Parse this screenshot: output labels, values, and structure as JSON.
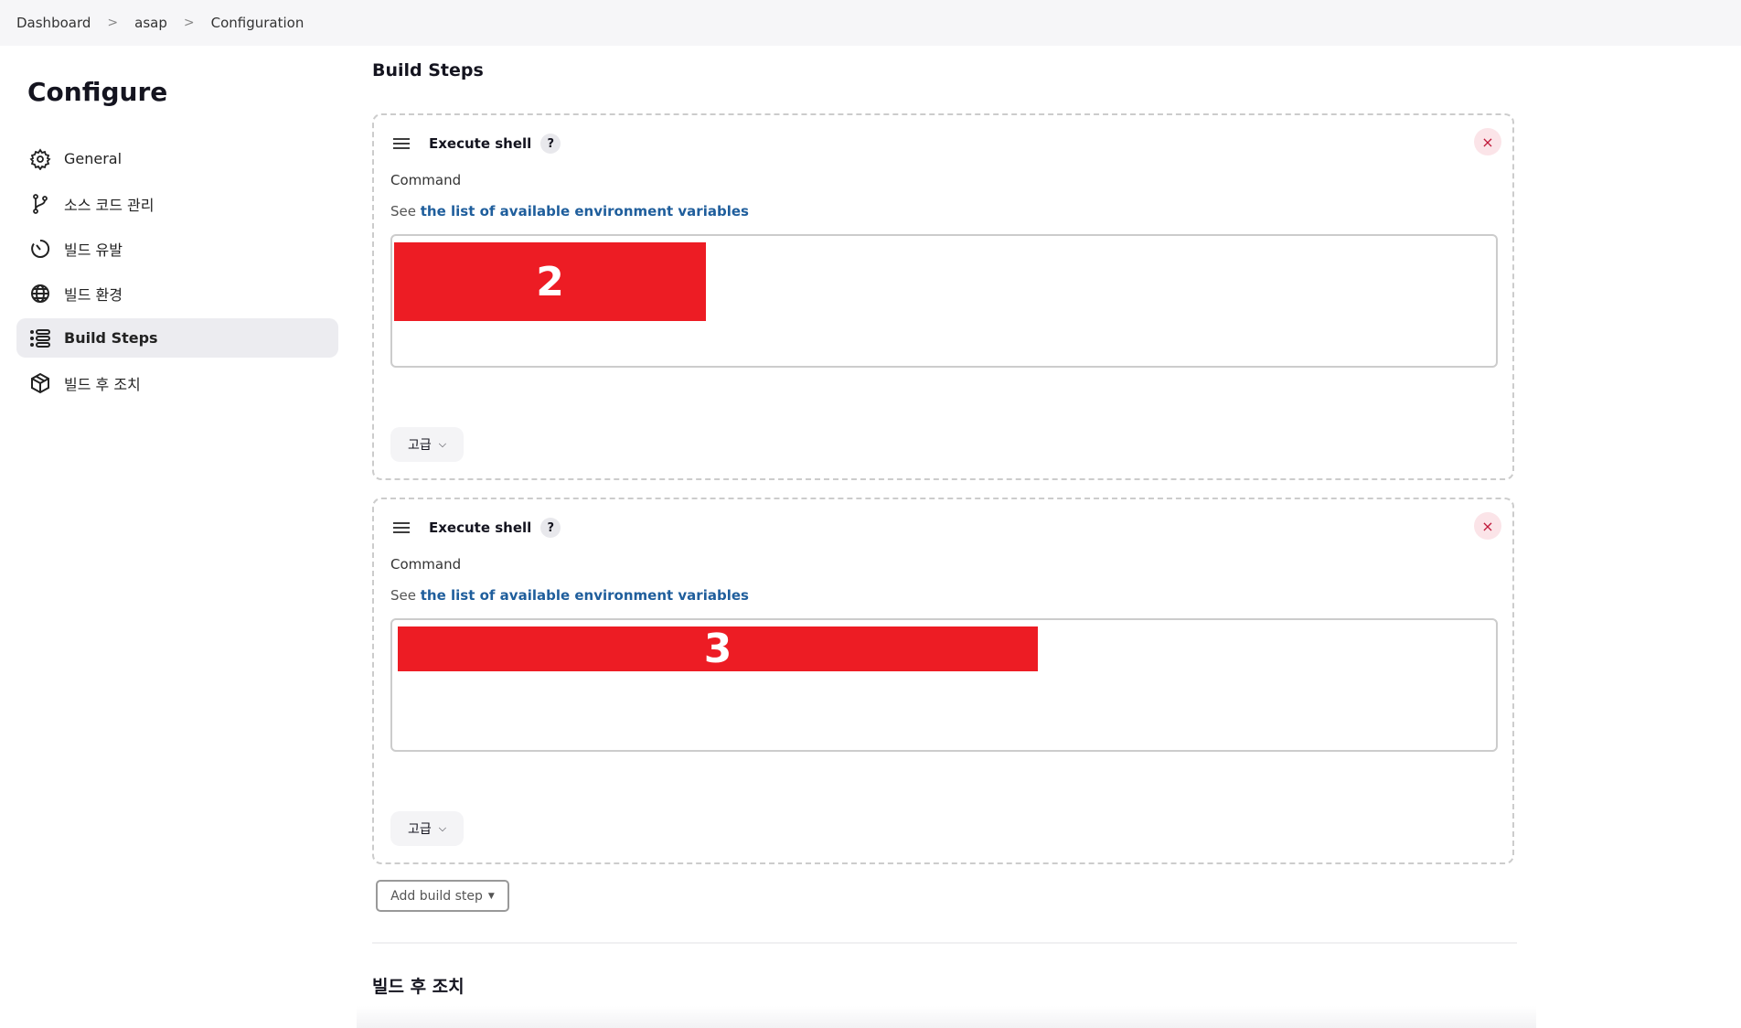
{
  "breadcrumb": [
    "Dashboard",
    "asap",
    "Configuration"
  ],
  "page_title": "Configure",
  "sidebar": {
    "items": [
      {
        "label": "General",
        "icon": "gear-icon"
      },
      {
        "label": "소스 코드 관리",
        "icon": "branch-icon"
      },
      {
        "label": "빌드 유발",
        "icon": "timer-icon"
      },
      {
        "label": "빌드 환경",
        "icon": "globe-icon"
      },
      {
        "label": "Build Steps",
        "icon": "list-icon",
        "active": true
      },
      {
        "label": "빌드 후 조치",
        "icon": "package-icon"
      }
    ]
  },
  "section_title": "Build Steps",
  "steps": [
    {
      "title": "Execute shell",
      "help": "?",
      "close": "×",
      "command_label": "Command",
      "see": "See",
      "link": "the list of available environment variables",
      "redaction": "2",
      "advanced": "고급"
    },
    {
      "title": "Execute shell",
      "help": "?",
      "close": "×",
      "command_label": "Command",
      "see": "See",
      "link": "the list of available environment variables",
      "redaction": "3",
      "advanced": "고급"
    }
  ],
  "add_build_step": "Add build step",
  "post_build_title": "빌드 후 조치",
  "colors": {
    "redaction": "#ed1c24",
    "link": "#1f5e9c",
    "active_bg": "#ececf0"
  }
}
